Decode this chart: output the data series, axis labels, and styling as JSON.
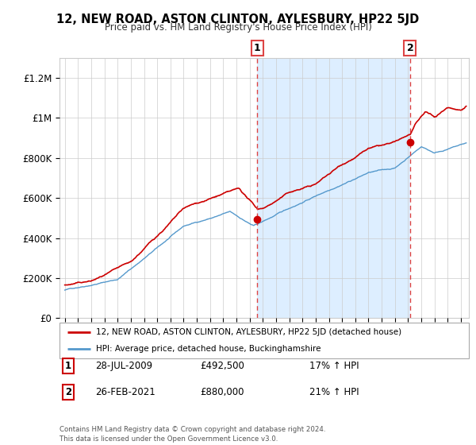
{
  "title": "12, NEW ROAD, ASTON CLINTON, AYLESBURY, HP22 5JD",
  "subtitle": "Price paid vs. HM Land Registry's House Price Index (HPI)",
  "ylabel_ticks": [
    "£0",
    "£200K",
    "£400K",
    "£600K",
    "£800K",
    "£1M",
    "£1.2M"
  ],
  "ytick_values": [
    0,
    200000,
    400000,
    600000,
    800000,
    1000000,
    1200000
  ],
  "ylim": [
    0,
    1300000
  ],
  "xlim_start": 1994.6,
  "xlim_end": 2025.6,
  "marker1_x": 2009.57,
  "marker1_y": 492500,
  "marker2_x": 2021.15,
  "marker2_y": 880000,
  "vline1_x": 2009.57,
  "vline2_x": 2021.15,
  "shade_color": "#ddeeff",
  "legend_line1_color": "#cc0000",
  "legend_line1_label": "12, NEW ROAD, ASTON CLINTON, AYLESBURY, HP22 5JD (detached house)",
  "legend_line2_color": "#5599cc",
  "legend_line2_label": "HPI: Average price, detached house, Buckinghamshire",
  "table_rows": [
    {
      "num": "1",
      "date": "28-JUL-2009",
      "price": "£492,500",
      "hpi": "17% ↑ HPI"
    },
    {
      "num": "2",
      "date": "26-FEB-2021",
      "price": "£880,000",
      "hpi": "21% ↑ HPI"
    }
  ],
  "footer": "Contains HM Land Registry data © Crown copyright and database right 2024.\nThis data is licensed under the Open Government Licence v3.0.",
  "hpi_color": "#5599cc",
  "price_color": "#cc0000",
  "grid_color": "#cccccc",
  "vline_color": "#dd4444",
  "background_color": "#ffffff"
}
